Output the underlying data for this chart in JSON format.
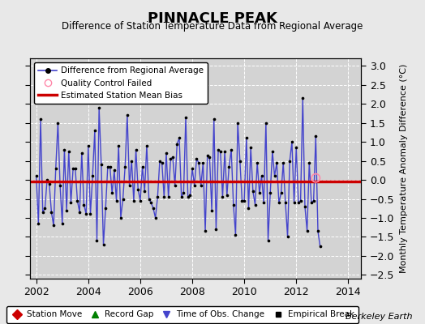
{
  "title": "PINNACLE PEAK",
  "subtitle": "Difference of Station Temperature Data from Regional Average",
  "ylabel_right": "Monthly Temperature Anomaly Difference (°C)",
  "bias": -0.05,
  "xlim": [
    2001.75,
    2014.5
  ],
  "ylim": [
    -2.6,
    3.2
  ],
  "yticks": [
    -2.5,
    -2,
    -1.5,
    -1,
    -0.5,
    0,
    0.5,
    1,
    1.5,
    2,
    2.5,
    3
  ],
  "xticks": [
    2002,
    2004,
    2006,
    2008,
    2010,
    2012,
    2014
  ],
  "bg_color": "#e8e8e8",
  "plot_bg_color": "#d3d3d3",
  "grid_color": "#ffffff",
  "line_color": "#4444cc",
  "marker_color": "#000000",
  "bias_color": "#cc0000",
  "qc_fail_x": 2012.75,
  "qc_fail_y": 0.05,
  "watermark": "Berkeley Earth",
  "monthly_data": [
    0.1,
    -1.15,
    1.6,
    -0.85,
    -0.75,
    0.0,
    -0.1,
    -0.85,
    -1.2,
    0.3,
    1.5,
    -0.15,
    -1.15,
    0.8,
    -0.8,
    0.75,
    -0.6,
    0.3,
    0.3,
    -0.55,
    -0.85,
    0.7,
    -0.65,
    -0.9,
    0.9,
    -0.9,
    0.1,
    1.3,
    -1.6,
    1.9,
    0.4,
    -1.7,
    -0.75,
    0.35,
    0.35,
    -0.35,
    0.25,
    -0.55,
    0.9,
    -1.0,
    -0.5,
    0.35,
    1.7,
    -0.15,
    0.5,
    -0.55,
    0.8,
    -0.25,
    -0.55,
    0.35,
    -0.3,
    0.9,
    -0.5,
    -0.6,
    -0.75,
    -1.0,
    -0.45,
    0.5,
    0.45,
    -0.45,
    0.7,
    -0.45,
    0.55,
    0.6,
    -0.15,
    0.95,
    1.1,
    -0.45,
    -0.35,
    1.65,
    -0.45,
    -0.4,
    0.3,
    -0.15,
    0.55,
    0.45,
    -0.15,
    0.45,
    -1.35,
    0.65,
    0.6,
    -0.8,
    1.6,
    -1.3,
    0.8,
    0.75,
    -0.45,
    0.75,
    -0.4,
    0.35,
    0.8,
    -0.65,
    -1.45,
    1.5,
    0.5,
    -0.55,
    -0.55,
    1.1,
    -0.75,
    0.85,
    -0.3,
    -0.65,
    0.45,
    -0.35,
    0.1,
    -0.6,
    1.5,
    -1.6,
    -0.35,
    0.75,
    0.1,
    0.45,
    -0.6,
    -0.35,
    0.45,
    -0.6,
    -1.5,
    0.5,
    1.0,
    -0.6,
    0.85,
    -0.6,
    -0.55,
    2.15,
    -0.7,
    -1.35,
    0.45,
    -0.6,
    -0.55,
    1.15,
    -1.35,
    -1.75
  ],
  "start_year": 2002,
  "start_month": 1
}
